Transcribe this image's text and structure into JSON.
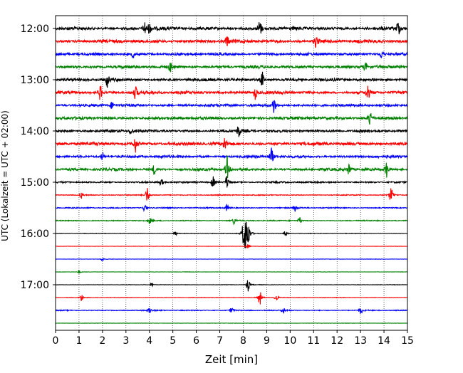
{
  "chart_data": {
    "type": "line",
    "title": "",
    "xlabel": "Zeit  [min]",
    "ylabel": "UTC (Lokalzeit = UTC + 02:00)",
    "xlim": [
      0,
      15
    ],
    "x_ticks": [
      "0",
      "1",
      "2",
      "3",
      "4",
      "5",
      "6",
      "7",
      "8",
      "9",
      "10",
      "11",
      "12",
      "13",
      "14",
      "15"
    ],
    "y_ticks": [
      "12:00",
      "13:00",
      "14:00",
      "15:00",
      "16:00",
      "17:00"
    ],
    "grid": "vertical dotted lines at each minute",
    "trace_interval_minutes": 15,
    "row_color_cycle": [
      "#000000",
      "#ff0000",
      "#0000ff",
      "#008000"
    ],
    "traces": [
      {
        "start": "12:00",
        "color": "#000000",
        "noise": 1.0,
        "spikes": [
          [
            3.8,
            1.0
          ],
          [
            4.0,
            0.8
          ],
          [
            8.7,
            1.3
          ],
          [
            14.6,
            1.3
          ]
        ]
      },
      {
        "start": "12:15",
        "color": "#ff0000",
        "noise": 1.0,
        "spikes": [
          [
            7.3,
            0.9
          ],
          [
            11.1,
            1.1
          ]
        ]
      },
      {
        "start": "12:30",
        "color": "#0000ff",
        "noise": 0.8,
        "spikes": [
          [
            3.3,
            0.6
          ],
          [
            13.9,
            0.7
          ]
        ]
      },
      {
        "start": "12:45",
        "color": "#008000",
        "noise": 0.9,
        "spikes": [
          [
            4.9,
            0.8
          ],
          [
            13.2,
            0.7
          ]
        ]
      },
      {
        "start": "13:00",
        "color": "#000000",
        "noise": 0.9,
        "spikes": [
          [
            2.2,
            1.1
          ],
          [
            8.8,
            1.2
          ]
        ]
      },
      {
        "start": "13:15",
        "color": "#ff0000",
        "noise": 0.9,
        "spikes": [
          [
            1.9,
            1.2
          ],
          [
            3.4,
            1.0
          ],
          [
            8.5,
            1.0
          ],
          [
            13.3,
            1.4
          ]
        ]
      },
      {
        "start": "13:30",
        "color": "#0000ff",
        "noise": 0.8,
        "spikes": [
          [
            9.3,
            1.4
          ],
          [
            2.4,
            0.6
          ]
        ]
      },
      {
        "start": "13:45",
        "color": "#008000",
        "noise": 0.9,
        "spikes": [
          [
            13.4,
            1.4
          ]
        ]
      },
      {
        "start": "14:00",
        "color": "#000000",
        "noise": 0.8,
        "spikes": [
          [
            7.8,
            1.0
          ],
          [
            3.2,
            0.6
          ]
        ]
      },
      {
        "start": "14:15",
        "color": "#ff0000",
        "noise": 1.0,
        "spikes": [
          [
            3.4,
            1.3
          ],
          [
            7.2,
            1.0
          ]
        ]
      },
      {
        "start": "14:30",
        "color": "#0000ff",
        "noise": 0.8,
        "spikes": [
          [
            9.2,
            1.3
          ],
          [
            2.0,
            0.6
          ]
        ]
      },
      {
        "start": "14:45",
        "color": "#008000",
        "noise": 0.8,
        "spikes": [
          [
            7.3,
            2.0
          ],
          [
            4.2,
            0.8
          ],
          [
            12.5,
            0.9
          ],
          [
            14.1,
            1.3
          ]
        ]
      },
      {
        "start": "15:00",
        "color": "#000000",
        "noise": 0.5,
        "spikes": [
          [
            6.7,
            1.0
          ],
          [
            7.3,
            1.1
          ],
          [
            4.5,
            0.6
          ]
        ]
      },
      {
        "start": "15:15",
        "color": "#ff0000",
        "noise": 0.3,
        "spikes": [
          [
            3.9,
            1.3
          ],
          [
            14.3,
            1.3
          ],
          [
            1.1,
            0.5
          ]
        ]
      },
      {
        "start": "15:30",
        "color": "#0000ff",
        "noise": 0.35,
        "spikes": [
          [
            3.8,
            0.6
          ],
          [
            7.3,
            0.6
          ],
          [
            10.2,
            0.5
          ]
        ]
      },
      {
        "start": "15:45",
        "color": "#008000",
        "noise": 0.3,
        "spikes": [
          [
            4.0,
            0.5
          ],
          [
            7.6,
            0.6
          ],
          [
            10.4,
            0.6
          ]
        ]
      },
      {
        "start": "16:00",
        "color": "#000000",
        "noise": 0.15,
        "spikes": [
          [
            8.1,
            2.6
          ],
          [
            8.0,
            1.8
          ],
          [
            8.2,
            1.9
          ],
          [
            5.1,
            0.4
          ],
          [
            9.8,
            0.5
          ]
        ]
      },
      {
        "start": "16:15",
        "color": "#ff0000",
        "noise": 0.1,
        "spikes": [
          [
            8.2,
            0.3
          ]
        ]
      },
      {
        "start": "16:30",
        "color": "#0000ff",
        "noise": 0.1,
        "spikes": [
          [
            2.0,
            0.3
          ]
        ]
      },
      {
        "start": "16:45",
        "color": "#008000",
        "noise": 0.1,
        "spikes": [
          [
            1.0,
            0.3
          ]
        ]
      },
      {
        "start": "17:00",
        "color": "#000000",
        "noise": 0.12,
        "spikes": [
          [
            8.2,
            1.0
          ],
          [
            4.1,
            0.3
          ]
        ]
      },
      {
        "start": "17:15",
        "color": "#ff0000",
        "noise": 0.15,
        "spikes": [
          [
            8.7,
            1.2
          ],
          [
            1.1,
            0.6
          ],
          [
            9.4,
            0.6
          ]
        ]
      },
      {
        "start": "17:30",
        "color": "#0000ff",
        "noise": 0.3,
        "spikes": [
          [
            4.0,
            0.5
          ],
          [
            7.5,
            0.5
          ],
          [
            9.7,
            0.5
          ],
          [
            13.0,
            0.6
          ]
        ]
      },
      {
        "start": "17:45",
        "color": "#008000",
        "noise": 0.1,
        "spikes": []
      }
    ]
  }
}
